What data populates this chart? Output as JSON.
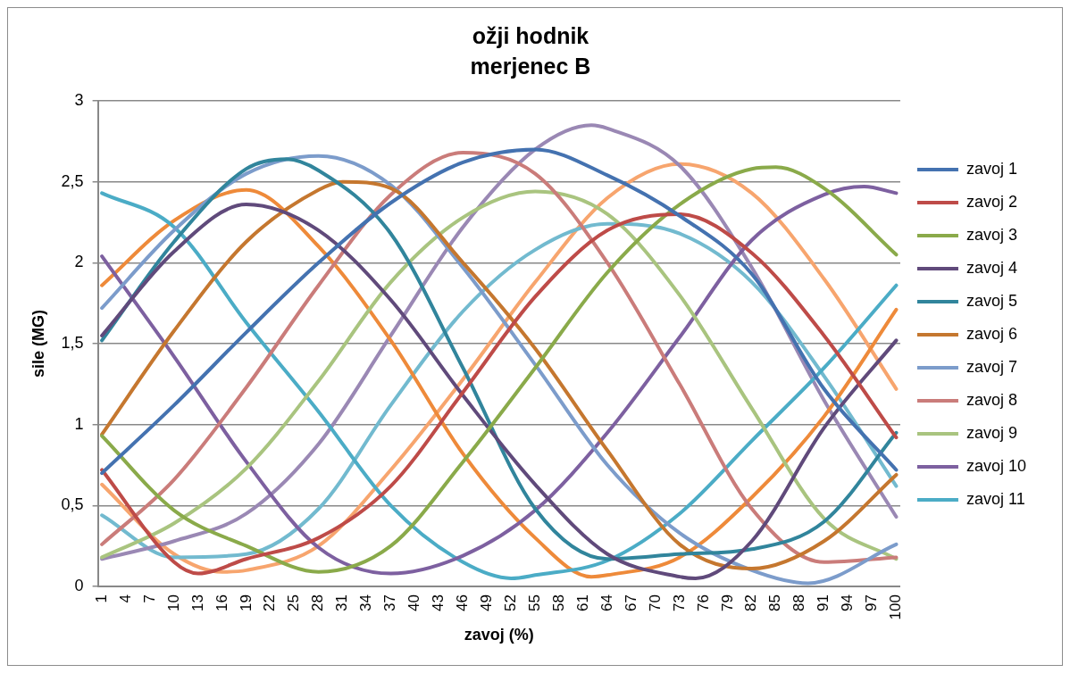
{
  "chart_data": {
    "type": "line",
    "title": "ožji hodnik",
    "subtitle": "merjenec B",
    "xlabel": "zavoj (%)",
    "ylabel": "sile (MG)",
    "xlim": [
      0.5,
      100.5
    ],
    "xticks": [
      1,
      4,
      7,
      10,
      13,
      16,
      19,
      22,
      25,
      28,
      31,
      34,
      37,
      40,
      43,
      46,
      49,
      52,
      55,
      58,
      61,
      64,
      67,
      70,
      73,
      76,
      79,
      82,
      85,
      88,
      91,
      94,
      97,
      100
    ],
    "ylim": [
      0,
      3
    ],
    "yticks": [
      0,
      {
        "value": 0.5,
        "label": "0,5"
      },
      1,
      {
        "value": 1.5,
        "label": "1,5"
      },
      2,
      {
        "value": 2.5,
        "label": "2,5"
      },
      3
    ],
    "grid": "y",
    "legend": "right",
    "marker": "none",
    "line_style": "solid",
    "series": [
      {
        "name": "zavoj 1",
        "color": "#4472b0",
        "x": [
          1,
          10,
          19,
          28,
          37,
          46,
          55,
          64,
          73,
          82,
          91,
          100
        ],
        "values": [
          0.7,
          1.12,
          1.57,
          2.0,
          2.37,
          2.62,
          2.7,
          2.54,
          2.29,
          1.93,
          1.22,
          0.72
        ]
      },
      {
        "name": "zavoj 2",
        "color": "#be4b48",
        "x": [
          1,
          10,
          13,
          19,
          28,
          37,
          46,
          55,
          64,
          73,
          82,
          91,
          100
        ],
        "values": [
          0.72,
          0.15,
          0.08,
          0.17,
          0.3,
          0.62,
          1.2,
          1.79,
          2.2,
          2.3,
          2.06,
          1.55,
          0.92
        ]
      },
      {
        "name": "zavoj 3",
        "color": "#8aaa4a",
        "x": [
          1,
          10,
          19,
          28,
          37,
          46,
          55,
          64,
          73,
          82,
          85,
          91,
          100
        ],
        "values": [
          0.93,
          0.47,
          0.25,
          0.09,
          0.25,
          0.77,
          1.35,
          1.94,
          2.36,
          2.58,
          2.59,
          2.46,
          2.05
        ]
      },
      {
        "name": "zavoj 4",
        "color": "#604a7b",
        "x": [
          1,
          10,
          19,
          28,
          37,
          46,
          55,
          64,
          73,
          75,
          82,
          91,
          100
        ],
        "values": [
          1.55,
          2.07,
          2.36,
          2.2,
          1.77,
          1.18,
          0.63,
          0.2,
          0.06,
          0.05,
          0.28,
          0.98,
          1.52
        ]
      },
      {
        "name": "zavoj 5",
        "color": "#31859c",
        "x": [
          1,
          10,
          19,
          24,
          28,
          37,
          46,
          55,
          64,
          73,
          82,
          91,
          100
        ],
        "values": [
          1.52,
          2.13,
          2.58,
          2.64,
          2.57,
          2.18,
          1.35,
          0.48,
          0.17,
          0.2,
          0.23,
          0.4,
          0.95
        ]
      },
      {
        "name": "zavoj 6",
        "color": "#c5772f",
        "x": [
          1,
          10,
          19,
          28,
          31,
          37,
          46,
          55,
          64,
          73,
          82,
          91,
          100
        ],
        "values": [
          0.94,
          1.58,
          2.13,
          2.45,
          2.5,
          2.46,
          2.0,
          1.47,
          0.84,
          0.26,
          0.11,
          0.28,
          0.69
        ]
      },
      {
        "name": "zavoj 7",
        "color": "#7c9ccb",
        "x": [
          1,
          10,
          19,
          28,
          37,
          46,
          55,
          64,
          73,
          82,
          89,
          100
        ],
        "values": [
          1.72,
          2.2,
          2.55,
          2.66,
          2.48,
          1.97,
          1.37,
          0.75,
          0.33,
          0.1,
          0.02,
          0.26
        ]
      },
      {
        "name": "zavoj 8",
        "color": "#ca7c7a",
        "x": [
          1,
          10,
          19,
          28,
          37,
          46,
          55,
          64,
          73,
          82,
          91,
          100
        ],
        "values": [
          0.26,
          0.66,
          1.23,
          1.86,
          2.42,
          2.68,
          2.55,
          2.0,
          1.25,
          0.48,
          0.15,
          0.18
        ]
      },
      {
        "name": "zavoj 9",
        "color": "#a9c47f",
        "x": [
          1,
          10,
          19,
          28,
          37,
          46,
          55,
          64,
          73,
          82,
          91,
          100
        ],
        "values": [
          0.18,
          0.39,
          0.73,
          1.27,
          1.88,
          2.28,
          2.44,
          2.3,
          1.8,
          1.1,
          0.42,
          0.17
        ]
      },
      {
        "name": "zavoj 10",
        "color": "#7d60a0",
        "x": [
          1,
          10,
          19,
          28,
          37,
          46,
          55,
          64,
          73,
          82,
          91,
          96,
          100
        ],
        "values": [
          2.04,
          1.42,
          0.77,
          0.24,
          0.08,
          0.19,
          0.47,
          0.95,
          1.54,
          2.14,
          2.42,
          2.47,
          2.43
        ]
      },
      {
        "name": "zavoj 11",
        "color": "#4bacc6",
        "x": [
          1,
          10,
          19,
          28,
          37,
          46,
          52,
          55,
          64,
          73,
          82,
          91,
          100
        ],
        "values": [
          2.43,
          2.22,
          1.63,
          1.08,
          0.5,
          0.15,
          0.05,
          0.07,
          0.16,
          0.45,
          0.9,
          1.35,
          1.86
        ]
      },
      {
        "color": "#ee8a3a",
        "x": [
          1,
          10,
          19,
          28,
          37,
          46,
          55,
          62,
          64,
          73,
          82,
          91,
          100
        ],
        "values": [
          1.86,
          2.26,
          2.45,
          2.1,
          1.52,
          0.82,
          0.3,
          0.06,
          0.07,
          0.18,
          0.55,
          1.05,
          1.71
        ]
      },
      {
        "color": "#9a88b4",
        "x": [
          1,
          10,
          19,
          28,
          37,
          46,
          55,
          62,
          64,
          73,
          82,
          91,
          100
        ],
        "values": [
          0.17,
          0.28,
          0.45,
          0.88,
          1.55,
          2.22,
          2.7,
          2.85,
          2.83,
          2.6,
          1.97,
          1.15,
          0.43
        ]
      },
      {
        "color": "#72bacf",
        "x": [
          1,
          10,
          19,
          28,
          37,
          46,
          55,
          64,
          73,
          82,
          91,
          100
        ],
        "values": [
          0.44,
          0.18,
          0.2,
          0.48,
          1.12,
          1.7,
          2.08,
          2.24,
          2.18,
          1.88,
          1.3,
          0.62
        ]
      },
      {
        "color": "#f7a56e",
        "x": [
          1,
          10,
          16,
          19,
          28,
          37,
          46,
          55,
          64,
          73,
          82,
          91,
          100
        ],
        "values": [
          0.63,
          0.2,
          0.09,
          0.1,
          0.25,
          0.72,
          1.28,
          1.88,
          2.4,
          2.61,
          2.43,
          1.9,
          1.22
        ]
      }
    ]
  }
}
